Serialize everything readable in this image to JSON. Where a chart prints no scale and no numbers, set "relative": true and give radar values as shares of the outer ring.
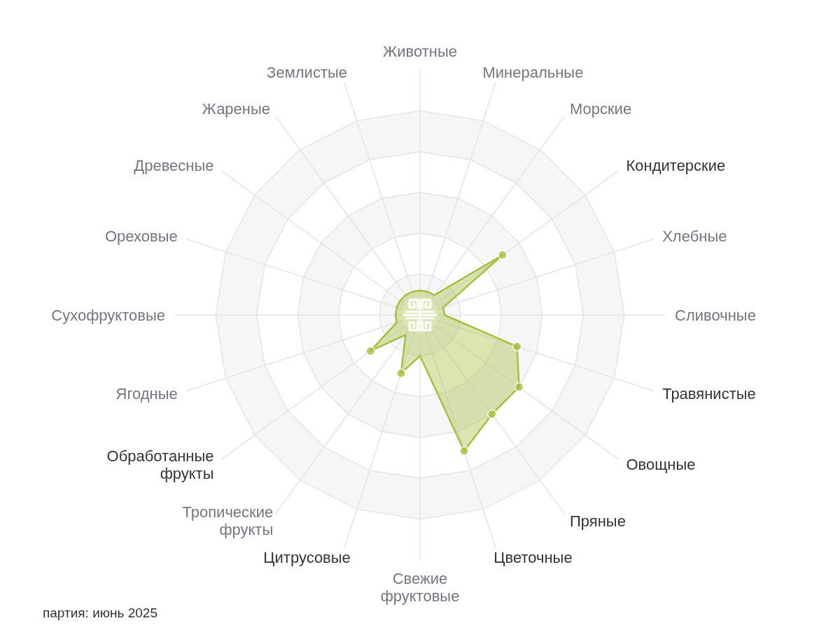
{
  "chart_data": {
    "type": "radar",
    "relative": true,
    "categories": [
      "Животные",
      "Минеральные",
      "Морские",
      "Кондитерские",
      "Хлебные",
      "Сливочные",
      "Травянистые",
      "Овощные",
      "Пряные",
      "Цветочные",
      "Свежие фруктовые",
      "Цитрусовые",
      "Тропические фрукты",
      "Обработанные фрукты",
      "Ягодные",
      "Сухофруктовые",
      "Ореховые",
      "Древесные",
      "Жареные",
      "Землистые"
    ],
    "series": [
      {
        "color": "#a5bf3f",
        "values": [
          0.12,
          0.12,
          0.12,
          0.5,
          0.12,
          0.12,
          0.5,
          0.6,
          0.6,
          0.7,
          0.2,
          0.3,
          0.12,
          0.3,
          0.12,
          0.12,
          0.12,
          0.12,
          0.12,
          0.12
        ],
        "colors": [
          null,
          null,
          null,
          "#a5bf3f",
          null,
          null,
          "#a5bf3f",
          "#a5bf3f",
          "#a5bf3f",
          "#a5bf3f",
          null,
          "#a5bf3f",
          null,
          "#a5bf3f",
          null,
          null,
          null,
          null,
          null,
          null
        ]
      }
    ],
    "marker": "circle",
    "grid": true,
    "annotations": [
      "партия: июнь 2025"
    ]
  }
}
